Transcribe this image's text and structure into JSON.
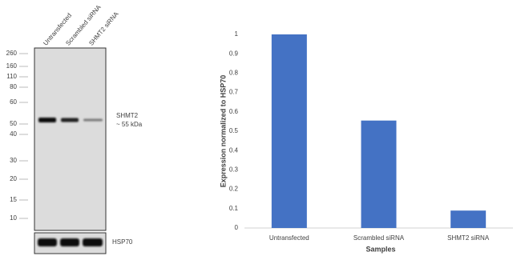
{
  "blot": {
    "lanes": [
      "Untransfected",
      "Scrambled siRNA",
      "SHMT2 siRNA"
    ],
    "markers": [
      260,
      160,
      110,
      80,
      60,
      50,
      40,
      30,
      20,
      15,
      10
    ],
    "target": "SHMT2",
    "target_size": "~ 55 kDa",
    "control": "HSP70"
  },
  "chart_data": {
    "type": "bar",
    "categories": [
      "Untransfected",
      "Scrambled siRNA",
      "SHMT2 siRNA"
    ],
    "values": [
      1,
      0.555,
      0.09
    ],
    "color": "#4472c4",
    "ylim": [
      0,
      1
    ],
    "yticks": [
      0,
      0.1,
      0.2,
      0.3,
      0.4,
      0.5,
      0.6,
      0.7,
      0.8,
      0.9,
      1
    ],
    "xlabel": "Samples",
    "ylabel": "Expression  normalized to HSP70",
    "grid": false
  }
}
